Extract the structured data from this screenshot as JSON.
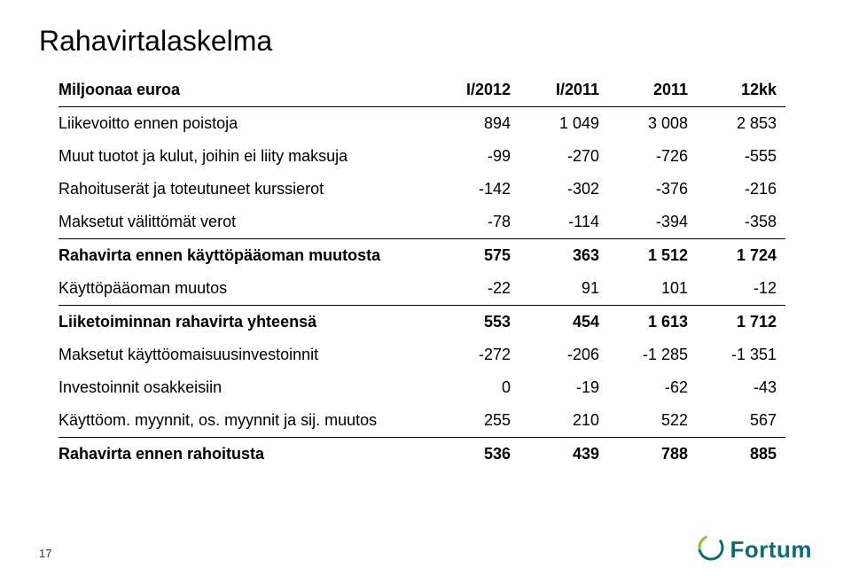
{
  "title": "Rahavirtalaskelma",
  "slide_number": "17",
  "logo_text": "Fortum",
  "colors": {
    "title": "#000000",
    "text": "#000000",
    "border": "#000000",
    "logo_primary": "#0e6b7a",
    "logo_accent": "#8cc63f",
    "background": "#ffffff"
  },
  "table": {
    "header": [
      "Miljoonaa euroa",
      "I/2012",
      "I/2011",
      "2011",
      "12kk"
    ],
    "columns_numeric": [
      "I/2012",
      "I/2011",
      "2011",
      "12kk"
    ],
    "rows": [
      {
        "label": "Liikevoitto ennen poistoja",
        "values": [
          "894",
          "1 049",
          "3 008",
          "2 853"
        ],
        "bold": false,
        "underline": false
      },
      {
        "label": "Muut tuotot ja kulut, joihin ei liity maksuja",
        "values": [
          "-99",
          "-270",
          "-726",
          "-555"
        ],
        "bold": false,
        "underline": false
      },
      {
        "label": "Rahoituserät ja toteutuneet kurssierot",
        "values": [
          "-142",
          "-302",
          "-376",
          "-216"
        ],
        "bold": false,
        "underline": false
      },
      {
        "label": "Maksetut välittömät verot",
        "values": [
          "-78",
          "-114",
          "-394",
          "-358"
        ],
        "bold": false,
        "underline": true
      },
      {
        "label": "Rahavirta ennen käyttöpääoman muutosta",
        "values": [
          "575",
          "363",
          "1 512",
          "1 724"
        ],
        "bold": true,
        "underline": false
      },
      {
        "label": "Käyttöpääoman muutos",
        "values": [
          "-22",
          "91",
          "101",
          "-12"
        ],
        "bold": false,
        "underline": true
      },
      {
        "label": "Liiketoiminnan rahavirta yhteensä",
        "values": [
          "553",
          "454",
          "1 613",
          "1 712"
        ],
        "bold": true,
        "underline": false
      },
      {
        "label": "Maksetut käyttöomaisuusinvestoinnit",
        "values": [
          "-272",
          "-206",
          "-1 285",
          "-1 351"
        ],
        "bold": false,
        "underline": false
      },
      {
        "label": "Investoinnit osakkeisiin",
        "values": [
          "0",
          "-19",
          "-62",
          "-43"
        ],
        "bold": false,
        "underline": false
      },
      {
        "label": "Käyttöom. myynnit, os. myynnit ja sij. muutos",
        "values": [
          "255",
          "210",
          "522",
          "567"
        ],
        "bold": false,
        "underline": true
      },
      {
        "label": "Rahavirta ennen rahoitusta",
        "values": [
          "536",
          "439",
          "788",
          "885"
        ],
        "bold": true,
        "underline": false
      }
    ]
  }
}
